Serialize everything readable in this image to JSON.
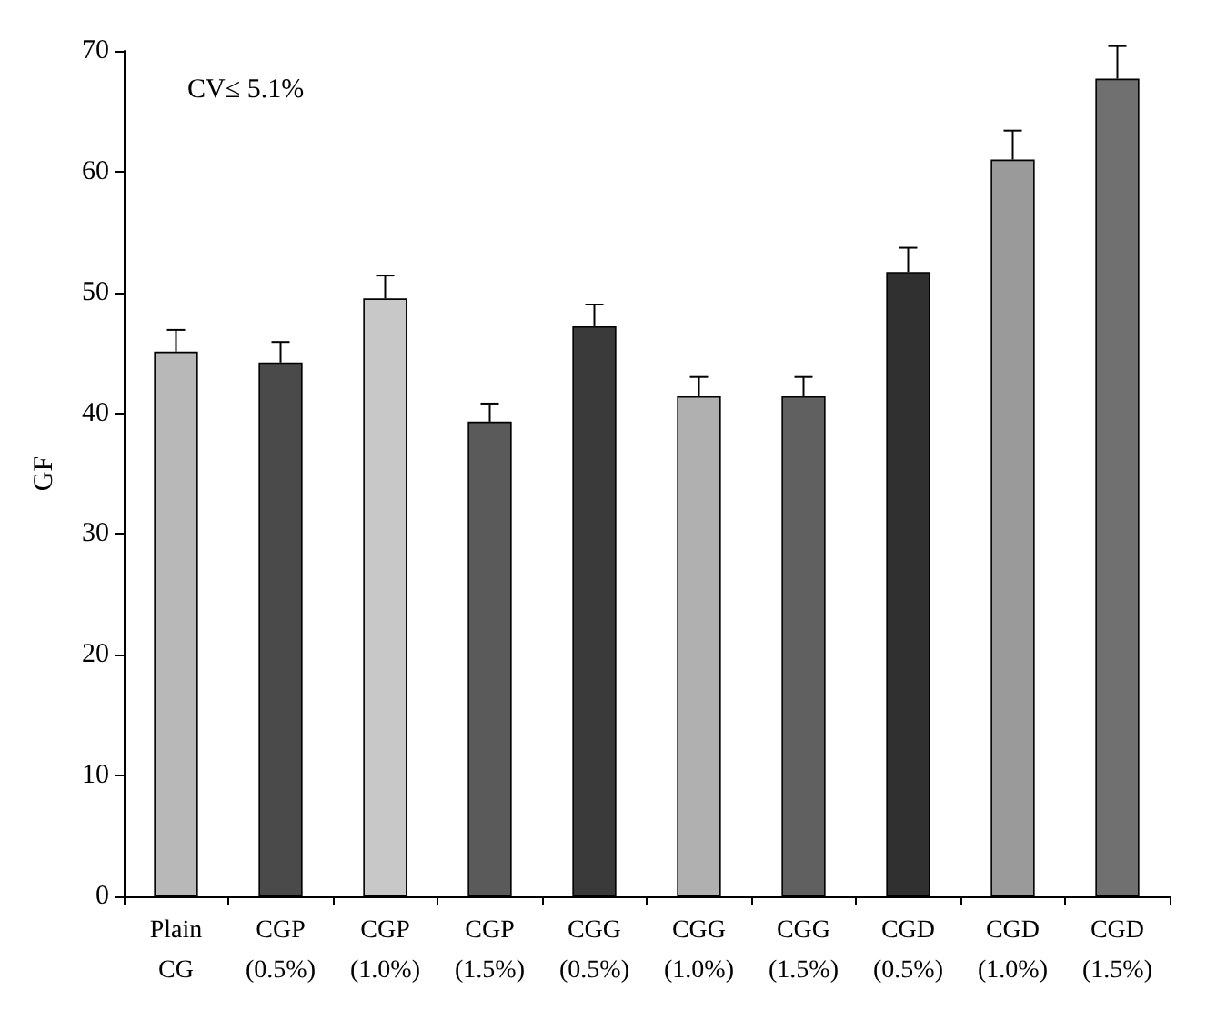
{
  "chart_data": {
    "type": "bar",
    "ylabel": "GF",
    "categories": [
      "Plain\nCG",
      "CGP\n(0.5%)",
      "CGP\n(1.0%)",
      "CGP\n(1.5%)",
      "CGG\n(0.5%)",
      "CGG\n(1.0%)",
      "CGG\n(1.5%)",
      "CGD\n(0.5%)",
      "CGD\n(1.0%)",
      "CGD\n(1.5%)"
    ],
    "values": [
      45.1,
      44.2,
      49.5,
      39.3,
      47.2,
      41.4,
      41.4,
      51.7,
      61,
      67.7
    ],
    "colors": [
      "#b8b8b8",
      "#4a4a4a",
      "#c8c8c8",
      "#5a5a5a",
      "#3a3a3a",
      "#b0b0b0",
      "#606060",
      "#303030",
      "#9a9a9a",
      "#707070"
    ],
    "errors": [
      [
        45.1,
        46.9
      ],
      [
        44.2,
        45.9
      ],
      [
        49.5,
        51.4
      ],
      [
        39.3,
        40.8
      ],
      [
        47.2,
        49
      ],
      [
        41.4,
        43
      ],
      [
        41.4,
        43
      ],
      [
        51.7,
        53.7
      ],
      [
        61,
        63.4
      ],
      [
        67.7,
        70.4
      ]
    ],
    "ylim": [
      0,
      70
    ],
    "yticks": [
      0,
      10,
      20,
      30,
      40,
      50,
      60,
      70
    ],
    "grid": false,
    "annotations": [
      "CV≤ 5.1%"
    ]
  }
}
